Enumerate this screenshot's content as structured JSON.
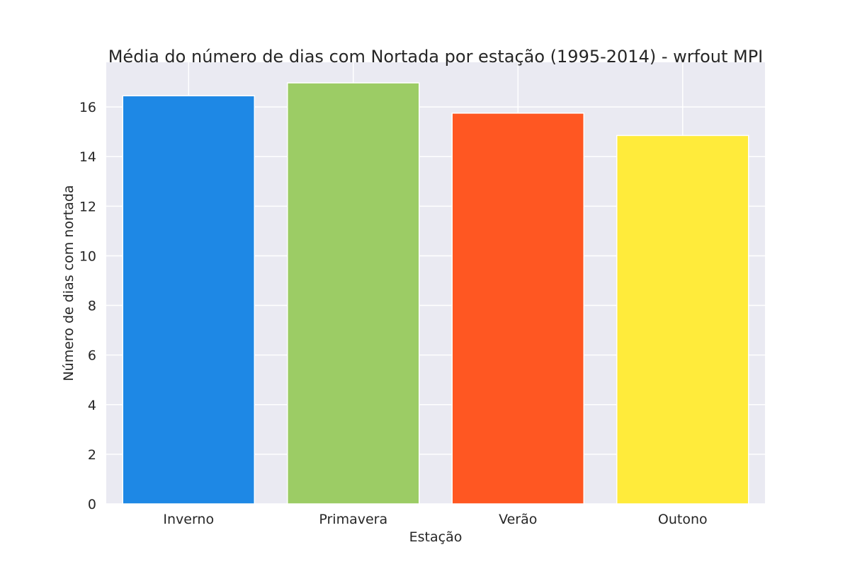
{
  "chart_data": {
    "type": "bar",
    "title": "Média do número de dias com Nortada por estação (1995-2014) - wrfout MPI",
    "xlabel": "Estação",
    "ylabel": "Número de dias com nortada",
    "categories": [
      "Inverno",
      "Primavera",
      "Verão",
      "Outono"
    ],
    "values": [
      16.45,
      16.97,
      15.75,
      14.85
    ],
    "colors": [
      "#1e88e5",
      "#9ccc65",
      "#ff5722",
      "#ffeb3b"
    ],
    "ylim": [
      0,
      17.8
    ],
    "yticks": [
      0,
      2,
      4,
      6,
      8,
      10,
      12,
      14,
      16
    ],
    "grid": true,
    "legend": "none",
    "background": "#eaeaf2"
  }
}
